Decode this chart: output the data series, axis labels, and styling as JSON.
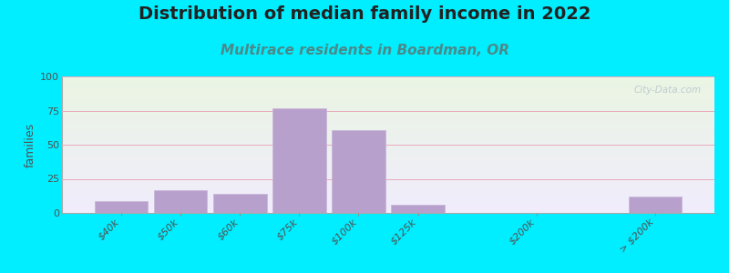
{
  "title": "Distribution of median family income in 2022",
  "subtitle": "Multirace residents in Boardman, OR",
  "ylabel": "families",
  "categories": [
    "$40k",
    "$50k",
    "$60k",
    "$75k",
    "$100k",
    "$125k",
    "$200k",
    "> $200k"
  ],
  "values": [
    9,
    17,
    14,
    77,
    61,
    6,
    0,
    12
  ],
  "bar_color": "#b8a0cc",
  "bar_edge_color": "#c8b4d8",
  "ylim": [
    0,
    100
  ],
  "yticks": [
    0,
    25,
    50,
    75,
    100
  ],
  "background_outer": "#00eeff",
  "bg_top_color": "#eaf5e2",
  "bg_bottom_color": "#f0ecfc",
  "grid_color": "#e8aabb",
  "title_fontsize": 14,
  "subtitle_fontsize": 11,
  "ylabel_fontsize": 9,
  "watermark_text": "City-Data.com",
  "x_positions": [
    1,
    2,
    3,
    4,
    5,
    6,
    8,
    10
  ],
  "xlim": [
    0,
    11
  ],
  "bar_width": 0.9
}
